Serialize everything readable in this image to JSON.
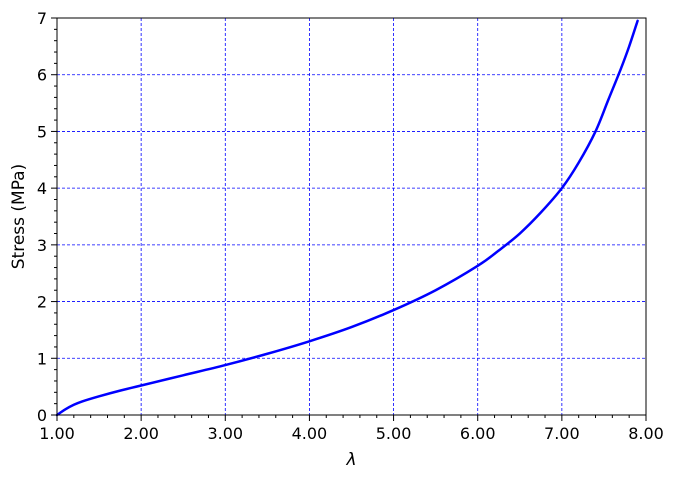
{
  "chart_data": {
    "type": "line",
    "title": "",
    "xlabel": "λ",
    "ylabel": "Stress (MPa)",
    "xlim": [
      1.0,
      8.0
    ],
    "ylim": [
      0,
      7
    ],
    "xticks": [
      1,
      2,
      3,
      4,
      5,
      6,
      7,
      8
    ],
    "xtick_labels": [
      "1.00",
      "2.00",
      "3.00",
      "4.00",
      "5.00",
      "6.00",
      "7.00",
      "8.00"
    ],
    "yticks": [
      0,
      1,
      2,
      3,
      4,
      5,
      6,
      7
    ],
    "ytick_labels": [
      "0",
      "1",
      "2",
      "3",
      "4",
      "5",
      "6",
      "7"
    ],
    "grid": true,
    "grid_color": "#0000ff",
    "series": [
      {
        "color": "#0000ff",
        "x": [
          1.0,
          1.1,
          1.2,
          1.3,
          1.5,
          1.75,
          2.0,
          2.5,
          3.0,
          3.5,
          4.0,
          4.5,
          5.0,
          5.5,
          6.0,
          6.25,
          6.5,
          6.75,
          7.0,
          7.2,
          7.4,
          7.55,
          7.7,
          7.8,
          7.9
        ],
        "y": [
          0.0,
          0.1,
          0.18,
          0.24,
          0.33,
          0.43,
          0.52,
          0.7,
          0.88,
          1.08,
          1.3,
          1.55,
          1.85,
          2.2,
          2.63,
          2.9,
          3.2,
          3.57,
          4.0,
          4.45,
          5.0,
          5.55,
          6.1,
          6.5,
          6.95
        ]
      }
    ]
  }
}
